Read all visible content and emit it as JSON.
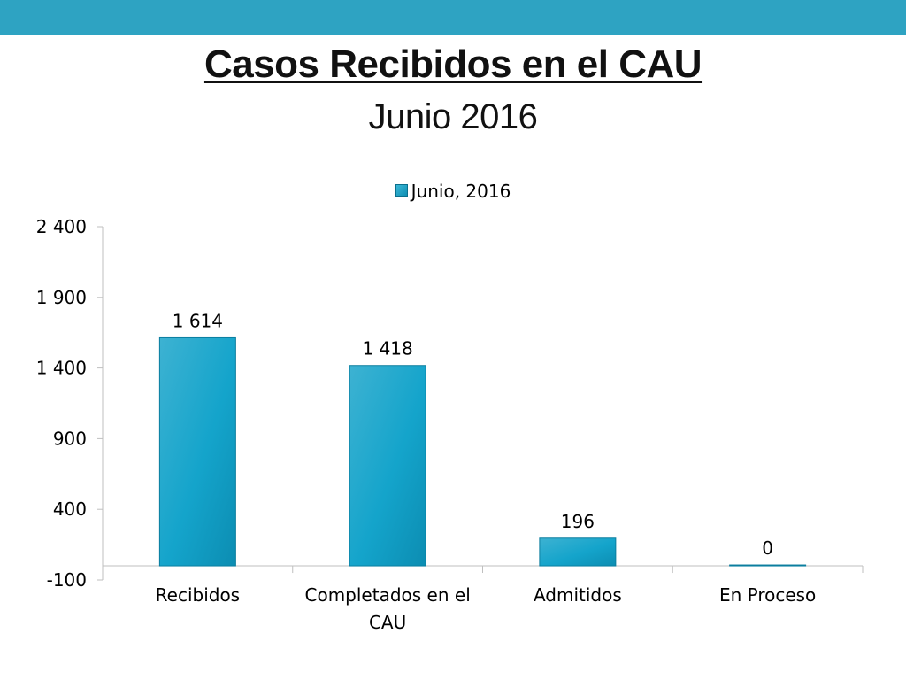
{
  "header": {
    "title": "Casos Recibidos en el CAU",
    "subtitle": "Junio 2016"
  },
  "colors": {
    "band": "#2ea3c2",
    "bar": "#1aa3c8",
    "axis": "#bfbfbf"
  },
  "chart_data": {
    "type": "bar",
    "categories": [
      "Recibidos",
      "Completados en el CAU",
      "Admitidos",
      "En Proceso"
    ],
    "category_lines": [
      [
        "Recibidos"
      ],
      [
        "Completados en el",
        "CAU"
      ],
      [
        "Admitidos"
      ],
      [
        "En Proceso"
      ]
    ],
    "series": [
      {
        "name": "Junio, 2016",
        "values": [
          1614,
          1418,
          196,
          0
        ]
      }
    ],
    "data_labels": [
      "1 614",
      "1 418",
      "196",
      "0"
    ],
    "yticks": [
      -100,
      400,
      900,
      1400,
      1900,
      2400
    ],
    "ytick_labels": [
      "-100",
      "400",
      "900",
      "1 400",
      "1 900",
      "2 400"
    ],
    "ylim": [
      -100,
      2400
    ],
    "baseline": 0,
    "legend_position": "top-center",
    "grid": false
  }
}
